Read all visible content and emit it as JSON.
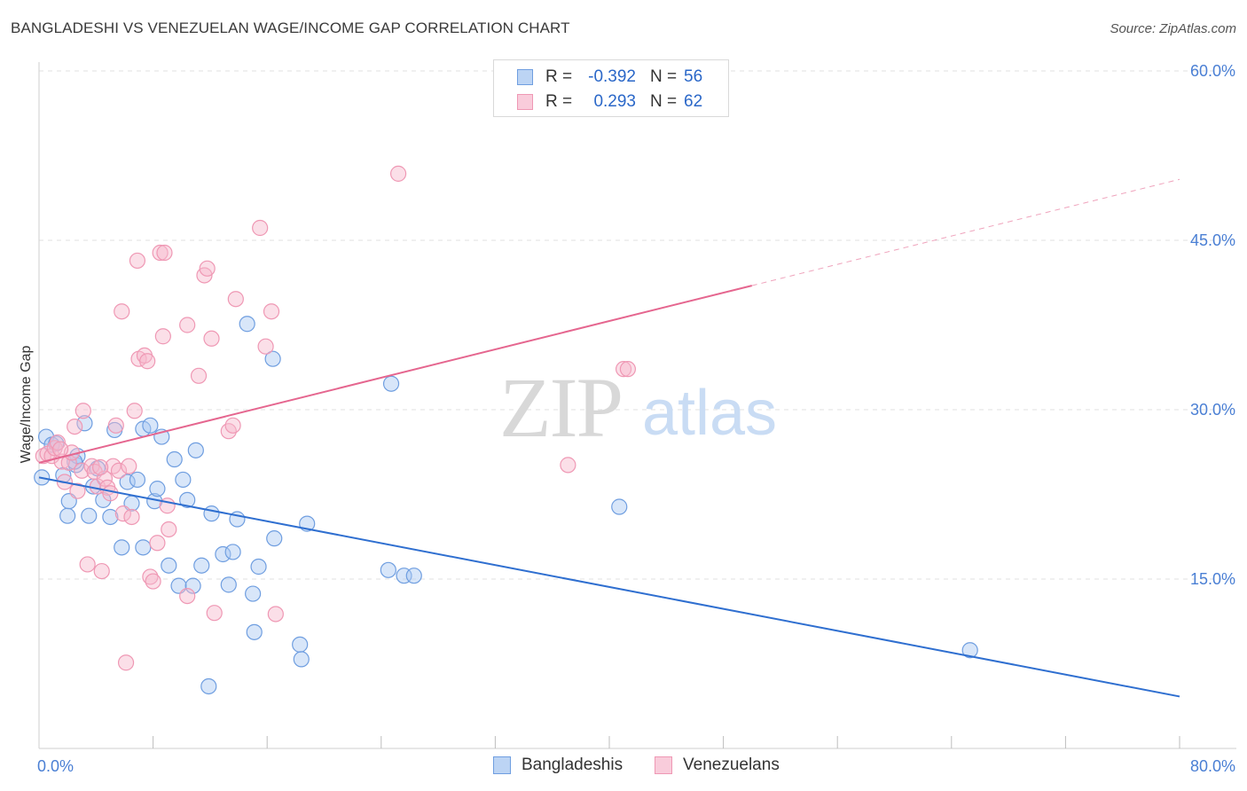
{
  "title": "BANGLADESHI VS VENEZUELAN WAGE/INCOME GAP CORRELATION CHART",
  "source": "Source: ZipAtlas.com",
  "watermark": {
    "zip": "ZIP",
    "atlas": "atlas"
  },
  "legend": {
    "r_label": "R =",
    "n_label": "N =",
    "rows": [
      {
        "r": "-0.392",
        "n": "56",
        "color": "#a9c7f1"
      },
      {
        "r": "0.293",
        "n": "62",
        "color": "#f7b9cc"
      }
    ]
  },
  "bottom_legend": [
    "Bangladeshis",
    "Venezuelans"
  ],
  "chart_data": {
    "type": "scatter",
    "ylabel": "Wage/Income Gap",
    "xlabel": "",
    "xlim": [
      0,
      80
    ],
    "ylim": [
      0,
      62
    ],
    "x_tick_labels": [
      {
        "value": 0,
        "label": "0.0%"
      },
      {
        "value": 80,
        "label": "80.0%"
      }
    ],
    "y_tick_labels": [
      {
        "value": 15,
        "label": "15.0%"
      },
      {
        "value": 30,
        "label": "30.0%"
      },
      {
        "value": 45,
        "label": "45.0%"
      },
      {
        "value": 60,
        "label": "60.0%"
      }
    ],
    "grid": true,
    "legend_position": "top-center",
    "series": [
      {
        "name": "Bangladeshis",
        "color": "#a9c7f1",
        "stroke": "#6f9ee0",
        "line_color": "#2f6fd0",
        "trend": {
          "x0": 0,
          "y0": 24.0,
          "x1": 80,
          "y1": 4.6,
          "dashed_from": null
        },
        "points": [
          [
            0.2,
            24.0
          ],
          [
            0.5,
            27.6
          ],
          [
            0.9,
            26.9
          ],
          [
            1.2,
            27.0
          ],
          [
            1.7,
            24.2
          ],
          [
            2.0,
            20.6
          ],
          [
            2.1,
            21.9
          ],
          [
            2.6,
            25.1
          ],
          [
            2.7,
            25.9
          ],
          [
            3.2,
            28.8
          ],
          [
            3.5,
            20.6
          ],
          [
            3.8,
            23.2
          ],
          [
            4.1,
            24.8
          ],
          [
            4.5,
            22.0
          ],
          [
            5.0,
            20.5
          ],
          [
            5.3,
            28.2
          ],
          [
            5.8,
            17.8
          ],
          [
            6.2,
            23.6
          ],
          [
            6.5,
            21.7
          ],
          [
            6.9,
            23.8
          ],
          [
            7.3,
            28.3
          ],
          [
            7.3,
            17.8
          ],
          [
            7.8,
            28.6
          ],
          [
            8.1,
            21.9
          ],
          [
            8.3,
            23.0
          ],
          [
            8.6,
            27.6
          ],
          [
            9.1,
            16.2
          ],
          [
            9.5,
            25.6
          ],
          [
            9.8,
            14.4
          ],
          [
            10.1,
            23.8
          ],
          [
            10.4,
            22.0
          ],
          [
            10.8,
            14.4
          ],
          [
            11.0,
            26.4
          ],
          [
            11.4,
            16.2
          ],
          [
            11.9,
            5.5
          ],
          [
            12.1,
            20.8
          ],
          [
            12.9,
            17.2
          ],
          [
            13.3,
            14.5
          ],
          [
            13.6,
            17.4
          ],
          [
            13.9,
            20.3
          ],
          [
            14.6,
            37.6
          ],
          [
            15.0,
            13.7
          ],
          [
            15.1,
            10.3
          ],
          [
            15.4,
            16.1
          ],
          [
            16.4,
            34.5
          ],
          [
            16.5,
            18.6
          ],
          [
            18.3,
            9.2
          ],
          [
            18.4,
            7.9
          ],
          [
            18.8,
            19.9
          ],
          [
            24.7,
            32.3
          ],
          [
            24.5,
            15.8
          ],
          [
            25.6,
            15.3
          ],
          [
            26.3,
            15.3
          ],
          [
            40.7,
            21.4
          ],
          [
            65.3,
            8.7
          ],
          [
            2.5,
            25.4
          ]
        ]
      },
      {
        "name": "Venezuelans",
        "color": "#f7b9cc",
        "stroke": "#ef98b4",
        "line_color": "#e5668f",
        "trend": {
          "x0": 0,
          "y0": 25.3,
          "x1": 80,
          "y1": 50.4,
          "dashed_from": 50
        },
        "points": [
          [
            0.3,
            25.9
          ],
          [
            0.6,
            26.1
          ],
          [
            0.9,
            25.9
          ],
          [
            1.1,
            26.6
          ],
          [
            1.3,
            27.1
          ],
          [
            1.6,
            25.4
          ],
          [
            1.8,
            23.6
          ],
          [
            2.1,
            25.3
          ],
          [
            2.3,
            26.2
          ],
          [
            2.5,
            28.5
          ],
          [
            2.7,
            22.8
          ],
          [
            3.0,
            24.6
          ],
          [
            3.1,
            29.9
          ],
          [
            3.4,
            16.3
          ],
          [
            3.7,
            25.0
          ],
          [
            3.9,
            24.5
          ],
          [
            4.1,
            23.2
          ],
          [
            4.4,
            15.7
          ],
          [
            4.6,
            23.9
          ],
          [
            4.8,
            23.1
          ],
          [
            5.0,
            22.6
          ],
          [
            5.2,
            25.0
          ],
          [
            5.4,
            28.6
          ],
          [
            5.6,
            24.6
          ],
          [
            5.8,
            38.7
          ],
          [
            5.9,
            20.8
          ],
          [
            6.1,
            7.6
          ],
          [
            6.5,
            20.5
          ],
          [
            6.7,
            29.9
          ],
          [
            6.9,
            43.2
          ],
          [
            7.0,
            34.5
          ],
          [
            7.4,
            34.8
          ],
          [
            7.6,
            34.3
          ],
          [
            7.8,
            15.2
          ],
          [
            8.0,
            14.8
          ],
          [
            8.3,
            18.2
          ],
          [
            8.5,
            43.9
          ],
          [
            8.7,
            36.5
          ],
          [
            8.8,
            43.9
          ],
          [
            9.1,
            19.4
          ],
          [
            9.0,
            21.5
          ],
          [
            10.4,
            37.5
          ],
          [
            10.4,
            13.5
          ],
          [
            11.2,
            33.0
          ],
          [
            11.6,
            41.9
          ],
          [
            11.8,
            42.5
          ],
          [
            12.1,
            36.3
          ],
          [
            12.3,
            12.0
          ],
          [
            13.3,
            28.1
          ],
          [
            13.6,
            28.6
          ],
          [
            13.8,
            39.8
          ],
          [
            15.5,
            46.1
          ],
          [
            15.9,
            35.6
          ],
          [
            16.3,
            38.7
          ],
          [
            16.6,
            11.9
          ],
          [
            25.2,
            50.9
          ],
          [
            37.1,
            25.1
          ],
          [
            41.0,
            33.6
          ],
          [
            41.3,
            33.6
          ],
          [
            4.3,
            24.9
          ],
          [
            6.3,
            25.0
          ],
          [
            1.5,
            26.5
          ]
        ]
      }
    ]
  }
}
